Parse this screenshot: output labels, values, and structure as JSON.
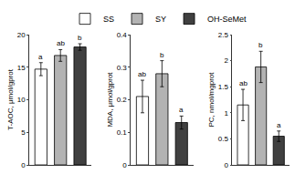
{
  "chart_data": [
    {
      "type": "bar",
      "y_label": "T-AOC, μmol/gprot",
      "legend": "top",
      "tick_labels": "y",
      "ylim": [
        0,
        20
      ],
      "yticks": [
        0,
        5,
        10,
        15,
        20
      ],
      "series": [
        {
          "name": "SS",
          "color": "#ffffff",
          "values": [
            14.7
          ],
          "errors": [
            1.0
          ],
          "letters": [
            "a"
          ]
        },
        {
          "name": "SY",
          "color": "#b3b3b3",
          "values": [
            16.8
          ],
          "errors": [
            0.9
          ],
          "letters": [
            "ab"
          ]
        },
        {
          "name": "OH-SeMet",
          "color": "#404040",
          "values": [
            18.1
          ],
          "errors": [
            0.5
          ],
          "letters": [
            "b"
          ]
        }
      ]
    },
    {
      "type": "bar",
      "y_label": "MDA, μmol/gprot",
      "tick_labels": "y",
      "ylim": [
        0,
        0.4
      ],
      "yticks": [
        0,
        0.1,
        0.2,
        0.3,
        0.4
      ],
      "series": [
        {
          "name": "SS",
          "color": "#ffffff",
          "values": [
            0.21
          ],
          "errors": [
            0.05
          ],
          "letters": [
            "ab"
          ]
        },
        {
          "name": "SY",
          "color": "#b3b3b3",
          "values": [
            0.28
          ],
          "errors": [
            0.04
          ],
          "letters": [
            "b"
          ]
        },
        {
          "name": "OH-SeMet",
          "color": "#404040",
          "values": [
            0.13
          ],
          "errors": [
            0.02
          ],
          "letters": [
            "a"
          ]
        }
      ]
    },
    {
      "type": "bar",
      "y_label": "PC, nmol/mgprot",
      "tick_labels": "y",
      "ylim": [
        0,
        2.5
      ],
      "yticks": [
        0,
        0.5,
        1,
        1.5,
        2,
        2.5
      ],
      "series": [
        {
          "name": "SS",
          "color": "#ffffff",
          "values": [
            1.15
          ],
          "errors": [
            0.3
          ],
          "letters": [
            "ab"
          ]
        },
        {
          "name": "SY",
          "color": "#b3b3b3",
          "values": [
            1.88
          ],
          "errors": [
            0.3
          ],
          "letters": [
            "b"
          ]
        },
        {
          "name": "OH-SeMet",
          "color": "#404040",
          "values": [
            0.55
          ],
          "errors": [
            0.1
          ],
          "letters": [
            "a"
          ]
        }
      ]
    }
  ]
}
